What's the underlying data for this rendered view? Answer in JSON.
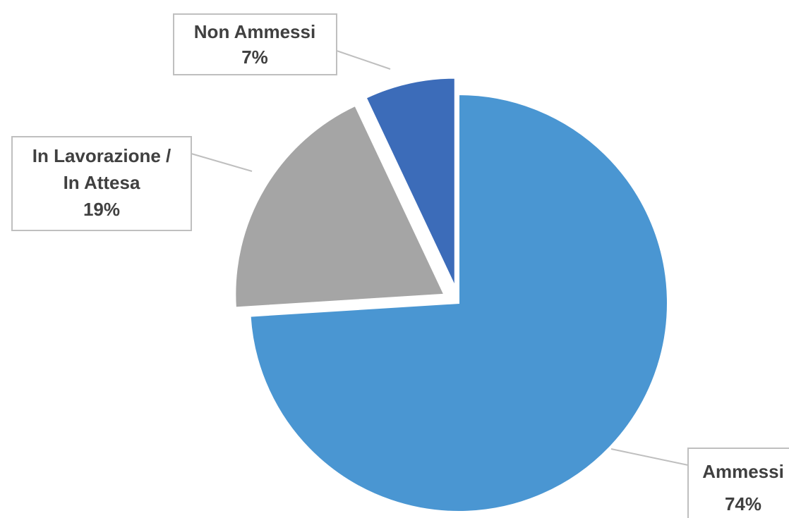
{
  "chart_data": {
    "type": "pie",
    "title": "",
    "slices": [
      {
        "label": "Ammessi",
        "value": 74,
        "value_label": "74%",
        "color": "#4a96d2",
        "exploded": false
      },
      {
        "label": "In Lavorazione / In Attesa",
        "label_lines": [
          "In Lavorazione /",
          "In Attesa"
        ],
        "value": 19,
        "value_label": "19%",
        "color": "#a5a5a5",
        "exploded": true
      },
      {
        "label": "Non Ammessi",
        "value": 7,
        "value_label": "7%",
        "color": "#3c6cb9",
        "exploded": true
      }
    ],
    "start_angle": "12 o'clock",
    "direction": "clockwise",
    "legend": "none",
    "data_labels": "callouts"
  }
}
